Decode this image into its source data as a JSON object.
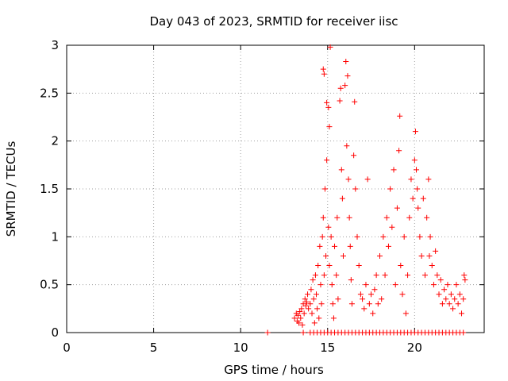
{
  "chart_data": {
    "type": "scatter",
    "title": "Day 043 of 2023, SRMTID for receiver iisc",
    "xlabel": "GPS time / hours",
    "ylabel": "SRMTID / TECUs",
    "xlim": [
      0,
      24
    ],
    "ylim": [
      0,
      3
    ],
    "xticks": [
      0,
      5,
      10,
      15,
      20
    ],
    "yticks": [
      0,
      0.5,
      1,
      1.5,
      2,
      2.5,
      3
    ],
    "xtick_labels": [
      "0",
      "5",
      "10",
      "15",
      "20"
    ],
    "ytick_labels": [
      "0",
      "0.5",
      "1",
      "1.5",
      "2",
      "2.5",
      "3"
    ],
    "grid": true,
    "marker": "+",
    "color": "#ff0000",
    "series": [
      {
        "name": "SRMTID",
        "points": [
          [
            11.55,
            0
          ],
          [
            13.1,
            0.15
          ],
          [
            13.2,
            0.2
          ],
          [
            13.25,
            0.12
          ],
          [
            13.3,
            0.18
          ],
          [
            13.35,
            0.1
          ],
          [
            13.4,
            0.22
          ],
          [
            13.45,
            0.15
          ],
          [
            13.5,
            0.25
          ],
          [
            13.55,
            0.08
          ],
          [
            13.6,
            0.3
          ],
          [
            13.65,
            0.2
          ],
          [
            13.7,
            0.35
          ],
          [
            13.75,
            0.28
          ],
          [
            13.8,
            0.32
          ],
          [
            13.85,
            0.4
          ],
          [
            13.9,
            0.25
          ],
          [
            14.0,
            0.3
          ],
          [
            14.05,
            0.45
          ],
          [
            14.1,
            0.2
          ],
          [
            14.15,
            0.55
          ],
          [
            14.2,
            0.35
          ],
          [
            14.25,
            0.1
          ],
          [
            14.3,
            0.6
          ],
          [
            14.35,
            0.4
          ],
          [
            14.4,
            0.25
          ],
          [
            14.45,
            0.7
          ],
          [
            14.5,
            0.15
          ],
          [
            14.55,
            0.9
          ],
          [
            14.6,
            0.5
          ],
          [
            14.65,
            0.3
          ],
          [
            14.7,
            1.0
          ],
          [
            14.75,
            1.2
          ],
          [
            14.8,
            0.6
          ],
          [
            14.85,
            1.5
          ],
          [
            14.9,
            0.8
          ],
          [
            14.95,
            1.8
          ],
          [
            14.75,
            2.75
          ],
          [
            14.8,
            2.7
          ],
          [
            14.95,
            2.4
          ],
          [
            15.05,
            2.35
          ],
          [
            15.1,
            2.15
          ],
          [
            15.15,
            2.98
          ],
          [
            15.05,
            1.1
          ],
          [
            15.1,
            0.7
          ],
          [
            15.2,
            1.0
          ],
          [
            15.25,
            0.5
          ],
          [
            15.3,
            0.3
          ],
          [
            15.35,
            0.15
          ],
          [
            15.4,
            0.9
          ],
          [
            15.5,
            0.6
          ],
          [
            15.55,
            1.2
          ],
          [
            15.6,
            0.35
          ],
          [
            15.7,
            2.42
          ],
          [
            15.75,
            2.55
          ],
          [
            15.8,
            1.7
          ],
          [
            15.85,
            1.4
          ],
          [
            15.9,
            0.8
          ],
          [
            16.0,
            2.58
          ],
          [
            16.05,
            2.83
          ],
          [
            16.1,
            1.95
          ],
          [
            16.15,
            2.68
          ],
          [
            16.2,
            1.6
          ],
          [
            16.25,
            1.2
          ],
          [
            16.3,
            0.9
          ],
          [
            16.35,
            0.55
          ],
          [
            16.4,
            0.3
          ],
          [
            16.5,
            1.85
          ],
          [
            16.55,
            2.41
          ],
          [
            16.6,
            1.5
          ],
          [
            16.7,
            1.0
          ],
          [
            16.8,
            0.7
          ],
          [
            16.9,
            0.4
          ],
          [
            17.0,
            0.35
          ],
          [
            17.1,
            0.25
          ],
          [
            17.2,
            0.5
          ],
          [
            17.3,
            1.6
          ],
          [
            17.4,
            0.3
          ],
          [
            17.5,
            0.4
          ],
          [
            17.6,
            0.2
          ],
          [
            17.7,
            0.45
          ],
          [
            17.8,
            0.6
          ],
          [
            17.9,
            0.3
          ],
          [
            18.0,
            0.8
          ],
          [
            18.1,
            0.35
          ],
          [
            18.2,
            1.0
          ],
          [
            18.3,
            0.6
          ],
          [
            18.4,
            1.2
          ],
          [
            18.5,
            0.9
          ],
          [
            18.6,
            1.5
          ],
          [
            18.7,
            1.1
          ],
          [
            18.8,
            1.7
          ],
          [
            18.9,
            0.5
          ],
          [
            19.0,
            1.3
          ],
          [
            19.1,
            1.9
          ],
          [
            19.15,
            2.26
          ],
          [
            19.2,
            0.7
          ],
          [
            19.3,
            0.4
          ],
          [
            19.4,
            1.0
          ],
          [
            19.5,
            0.2
          ],
          [
            19.6,
            0.6
          ],
          [
            19.7,
            1.2
          ],
          [
            19.8,
            1.6
          ],
          [
            19.9,
            1.4
          ],
          [
            20.0,
            1.8
          ],
          [
            20.05,
            2.1
          ],
          [
            20.1,
            1.7
          ],
          [
            20.15,
            1.5
          ],
          [
            20.2,
            1.3
          ],
          [
            20.3,
            1.0
          ],
          [
            20.4,
            0.8
          ],
          [
            20.5,
            1.4
          ],
          [
            20.6,
            0.6
          ],
          [
            20.7,
            1.2
          ],
          [
            20.8,
            1.6
          ],
          [
            20.85,
            0.8
          ],
          [
            20.9,
            1.0
          ],
          [
            21.0,
            0.7
          ],
          [
            21.1,
            0.5
          ],
          [
            21.2,
            0.85
          ],
          [
            21.3,
            0.6
          ],
          [
            21.4,
            0.4
          ],
          [
            21.5,
            0.55
          ],
          [
            21.6,
            0.3
          ],
          [
            21.7,
            0.45
          ],
          [
            21.8,
            0.35
          ],
          [
            21.9,
            0.5
          ],
          [
            22.0,
            0.3
          ],
          [
            22.1,
            0.4
          ],
          [
            22.2,
            0.25
          ],
          [
            22.3,
            0.35
          ],
          [
            22.4,
            0.5
          ],
          [
            22.5,
            0.3
          ],
          [
            22.6,
            0.4
          ],
          [
            22.7,
            0.2
          ],
          [
            22.8,
            0.35
          ],
          [
            22.85,
            0.6
          ],
          [
            22.9,
            0.55
          ],
          [
            13.6,
            0
          ],
          [
            14.0,
            0
          ],
          [
            14.2,
            0
          ],
          [
            14.4,
            0
          ],
          [
            14.6,
            0
          ],
          [
            14.8,
            0
          ],
          [
            15.0,
            0
          ],
          [
            15.2,
            0
          ],
          [
            15.4,
            0
          ],
          [
            15.6,
            0
          ],
          [
            15.8,
            0
          ],
          [
            16.0,
            0
          ],
          [
            16.2,
            0
          ],
          [
            16.4,
            0
          ],
          [
            16.6,
            0
          ],
          [
            16.8,
            0
          ],
          [
            17.0,
            0
          ],
          [
            17.2,
            0
          ],
          [
            17.4,
            0
          ],
          [
            17.6,
            0
          ],
          [
            17.8,
            0
          ],
          [
            18.0,
            0
          ],
          [
            18.2,
            0
          ],
          [
            18.4,
            0
          ],
          [
            18.6,
            0
          ],
          [
            18.8,
            0
          ],
          [
            19.0,
            0
          ],
          [
            19.2,
            0
          ],
          [
            19.4,
            0
          ],
          [
            19.6,
            0
          ],
          [
            19.8,
            0
          ],
          [
            20.0,
            0
          ],
          [
            20.2,
            0
          ],
          [
            20.4,
            0
          ],
          [
            20.6,
            0
          ],
          [
            20.8,
            0
          ],
          [
            21.0,
            0
          ],
          [
            21.2,
            0
          ],
          [
            21.4,
            0
          ],
          [
            21.6,
            0
          ],
          [
            21.8,
            0
          ],
          [
            22.0,
            0
          ],
          [
            22.2,
            0
          ],
          [
            22.4,
            0
          ],
          [
            22.6,
            0
          ],
          [
            22.8,
            0
          ]
        ]
      }
    ]
  }
}
